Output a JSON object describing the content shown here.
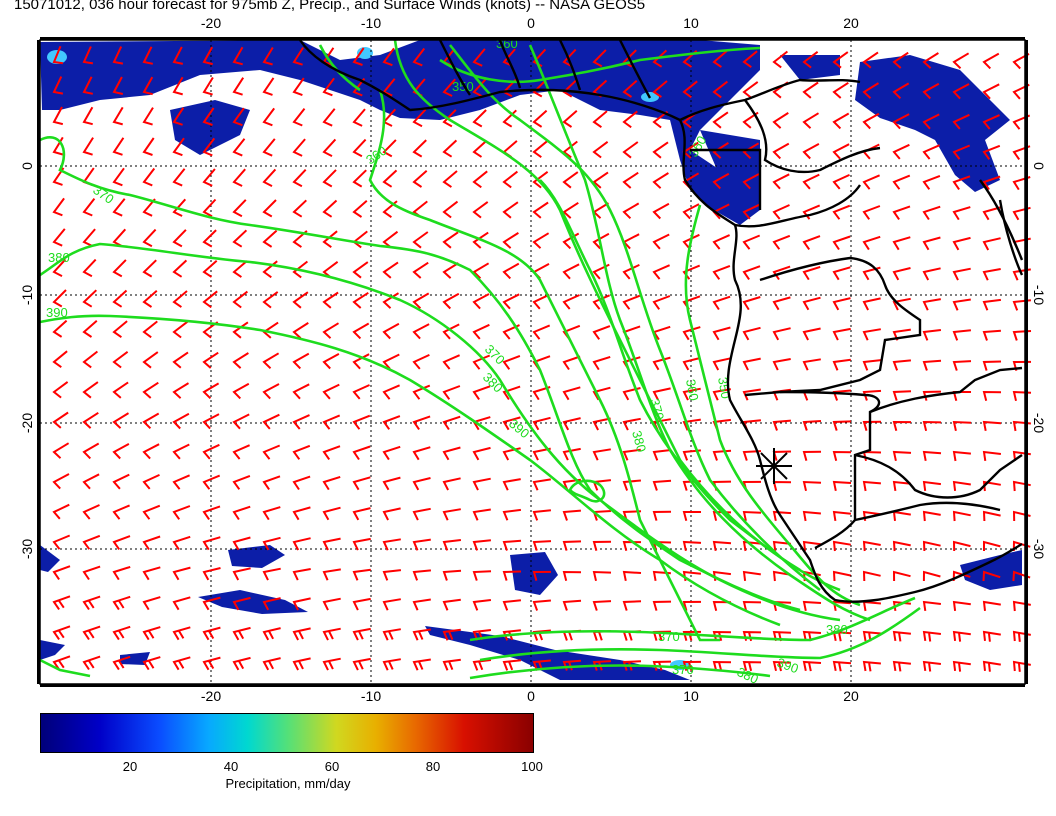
{
  "title": "15071012, 036 hour forecast for 975mb Z, Precip., and Surface Winds (knots) -- NASA GEOS5",
  "axes": {
    "lon_ticks": [
      "-20",
      "-10",
      "0",
      "10",
      "20"
    ],
    "lat_ticks": [
      "0",
      "-10",
      "-20",
      "-30"
    ]
  },
  "contours": {
    "color": "#1edc1e",
    "labels": [
      "370",
      "380",
      "390",
      "360",
      "350",
      "370",
      "380",
      "390",
      "380",
      "370",
      "360",
      "350",
      "360",
      "370",
      "380",
      "390",
      "380",
      "370",
      "360"
    ]
  },
  "wind_barbs": {
    "color": "#ff0000"
  },
  "precip_fill": {
    "color": "#0c1ea8",
    "highlight": "#42c8ff"
  },
  "marker": {
    "symbol": "star",
    "color": "#000000"
  },
  "colorbar": {
    "ticks": [
      "20",
      "40",
      "60",
      "80",
      "100"
    ],
    "label": "Precipitation, mm/day"
  }
}
